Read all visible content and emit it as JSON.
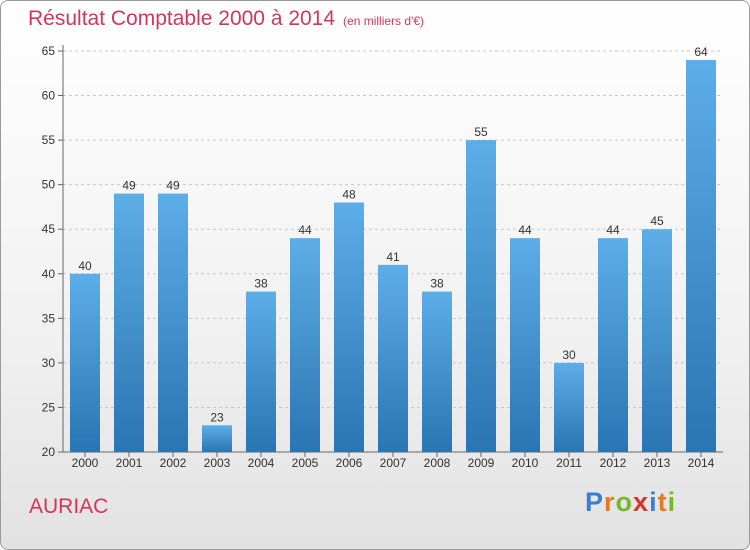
{
  "title": "Résultat Comptable 2000 à 2014",
  "subtitle": "(en milliers d'€)",
  "commune": "AURIAC",
  "brand": {
    "p": "P",
    "r": "r",
    "o": "o",
    "x": "x",
    "i1": "i",
    "t": "t",
    "i2": "i"
  },
  "colors": {
    "accent": "#d2365c",
    "bar_top": "#5dade8",
    "bar_bottom": "#2a75b3",
    "grid": "#c8c8c8"
  },
  "chart_data": {
    "type": "bar",
    "title": "Résultat Comptable 2000 à 2014",
    "ylabel": "en milliers d'€",
    "xlabel": "",
    "categories": [
      "2000",
      "2001",
      "2002",
      "2003",
      "2004",
      "2005",
      "2006",
      "2007",
      "2008",
      "2009",
      "2010",
      "2011",
      "2012",
      "2013",
      "2014"
    ],
    "values": [
      40,
      49,
      49,
      23,
      38,
      44,
      48,
      41,
      38,
      55,
      44,
      30,
      44,
      45,
      64
    ],
    "ylim": [
      20,
      65
    ],
    "yticks": [
      20,
      25,
      30,
      35,
      40,
      45,
      50,
      55,
      60,
      65
    ],
    "grid": true
  }
}
